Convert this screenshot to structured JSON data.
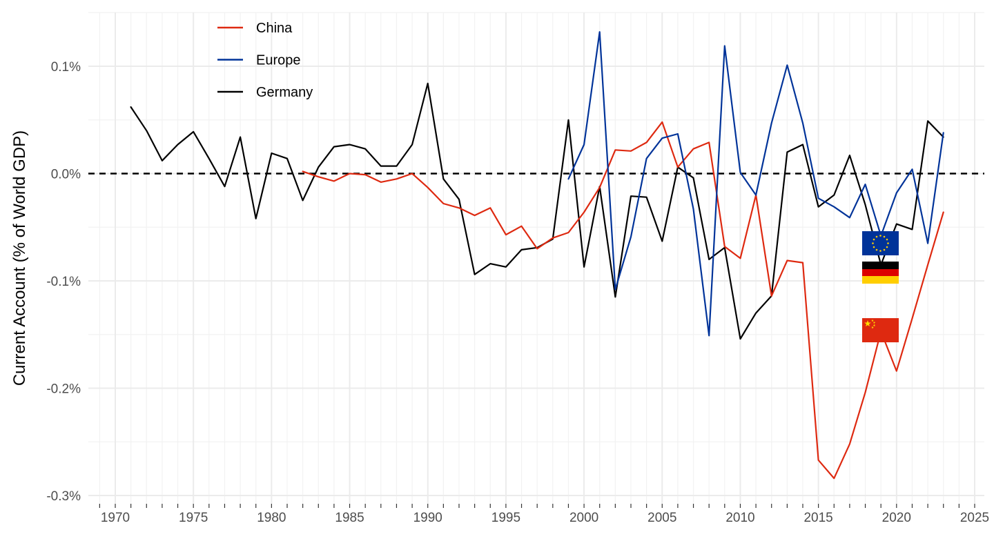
{
  "chart_data": {
    "type": "line",
    "title": "",
    "xlabel": "",
    "ylabel": "Current Account (% of World GDP)",
    "xlim": [
      1968.5,
      2025.5
    ],
    "ylim": [
      -0.3,
      0.15
    ],
    "x_ticks": [
      1970,
      1975,
      1980,
      1985,
      1990,
      1995,
      2000,
      2005,
      2010,
      2015,
      2020,
      2025
    ],
    "x_tick_labels": [
      "1970",
      "1975",
      "1980",
      "1985",
      "1990",
      "1995",
      "2000",
      "2005",
      "2010",
      "2015",
      "2020",
      "2025"
    ],
    "y_ticks": [
      -0.3,
      -0.2,
      -0.1,
      0.0,
      0.1
    ],
    "y_tick_labels": [
      "-0.3%",
      "-0.2%",
      "-0.1%",
      "0.0%",
      "0.1%"
    ],
    "reference_line": {
      "y": 0,
      "style": "dashed",
      "color": "#000000"
    },
    "grid": true,
    "legend_position": "top-left",
    "series": [
      {
        "name": "China",
        "color": "#de2910",
        "flag_icon": "china-flag-icon",
        "x": [
          1982,
          1983,
          1984,
          1985,
          1986,
          1987,
          1988,
          1989,
          1990,
          1991,
          1992,
          1993,
          1994,
          1995,
          1996,
          1997,
          1998,
          1999,
          2000,
          2001,
          2002,
          2003,
          2004,
          2005,
          2006,
          2007,
          2008,
          2009,
          2010,
          2011,
          2012,
          2013,
          2014,
          2015,
          2016,
          2017,
          2018,
          2019,
          2020,
          2021,
          2022,
          2023
        ],
        "y": [
          0.002,
          -0.003,
          -0.007,
          0.0,
          -0.001,
          -0.008,
          -0.005,
          0.0,
          -0.013,
          -0.028,
          -0.032,
          -0.039,
          -0.032,
          -0.057,
          -0.049,
          -0.07,
          -0.06,
          -0.055,
          -0.036,
          -0.013,
          0.022,
          0.021,
          0.029,
          0.048,
          0.006,
          0.023,
          0.029,
          -0.068,
          -0.079,
          -0.02,
          -0.114,
          -0.081,
          -0.083,
          -0.267,
          -0.284,
          -0.252,
          -0.204,
          -0.147,
          -0.184,
          -0.135,
          -0.085,
          -0.036
        ]
      },
      {
        "name": "Europe",
        "color": "#003399",
        "flag_icon": "eu-flag-icon",
        "x": [
          1999,
          2000,
          2001,
          2002,
          2003,
          2004,
          2005,
          2006,
          2007,
          2008,
          2009,
          2010,
          2011,
          2012,
          2013,
          2014,
          2015,
          2016,
          2017,
          2018,
          2019,
          2020,
          2021,
          2022,
          2023
        ],
        "y": [
          -0.005,
          0.027,
          0.132,
          -0.108,
          -0.059,
          0.014,
          0.033,
          0.037,
          -0.033,
          -0.151,
          0.119,
          0.001,
          -0.02,
          0.047,
          0.101,
          0.047,
          -0.023,
          -0.031,
          -0.041,
          -0.01,
          -0.058,
          -0.018,
          0.004,
          -0.065,
          0.038
        ]
      },
      {
        "name": "Germany",
        "color": "#000000",
        "flag_icon": "germany-flag-icon",
        "x": [
          1971,
          1972,
          1973,
          1974,
          1975,
          1976,
          1977,
          1978,
          1979,
          1980,
          1981,
          1982,
          1983,
          1984,
          1985,
          1986,
          1987,
          1988,
          1989,
          1990,
          1991,
          1992,
          1993,
          1994,
          1995,
          1996,
          1997,
          1998,
          1999,
          2000,
          2001,
          2002,
          2003,
          2004,
          2005,
          2006,
          2007,
          2008,
          2009,
          2010,
          2011,
          2012,
          2013,
          2014,
          2015,
          2016,
          2017,
          2018,
          2019,
          2020,
          2021,
          2022,
          2023
        ],
        "y": [
          0.062,
          0.04,
          0.012,
          0.027,
          0.039,
          0.014,
          -0.012,
          0.034,
          -0.042,
          0.019,
          0.014,
          -0.025,
          0.006,
          0.025,
          0.027,
          0.023,
          0.007,
          0.007,
          0.027,
          0.084,
          -0.005,
          -0.024,
          -0.094,
          -0.084,
          -0.087,
          -0.071,
          -0.069,
          -0.061,
          0.05,
          -0.087,
          -0.012,
          -0.115,
          -0.021,
          -0.022,
          -0.063,
          0.006,
          -0.004,
          -0.08,
          -0.069,
          -0.154,
          -0.13,
          -0.114,
          0.02,
          0.027,
          -0.031,
          -0.02,
          0.017,
          -0.029,
          -0.085,
          -0.047,
          -0.052,
          0.049,
          0.034
        ]
      }
    ]
  }
}
